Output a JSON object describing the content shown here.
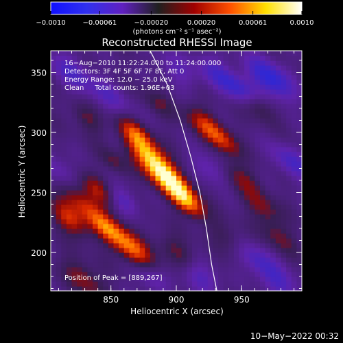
{
  "chart_data": {
    "type": "heatmap",
    "title": "Reconstructed RHESSI Image",
    "xlabel": "Heliocentric X (arcsec)",
    "ylabel": "Heliocentric Y (arcsec)",
    "xlim": [
      804,
      996
    ],
    "ylim": [
      168,
      368
    ],
    "x_ticks": [
      850,
      900,
      950
    ],
    "y_ticks": [
      200,
      250,
      300,
      350
    ],
    "colorbar": {
      "label": "(photons cm⁻² s⁻¹ asec⁻²)",
      "range": [
        -0.001,
        0.001
      ],
      "tick_labels": [
        "−0.0010",
        "−0.00061",
        "−0.00020",
        "0.00020",
        "0.00061",
        "0.0010"
      ],
      "tick_values": [
        -0.001,
        -0.00061,
        -0.0002,
        0.0002,
        0.00061,
        0.001
      ]
    },
    "annotations": [
      "16−Aug−2010 11:22:24.000 to 11:24:00.000",
      "Detectors: 3F 4F 5F 6F 7F 8F, Att 0",
      "Energy Range: 12.0 − 25.0 keV",
      "Clean     Total counts: 1.96E+03"
    ],
    "peak_label": "Position of Peak = [889,267]",
    "peak": [
      889,
      267
    ],
    "limb": [
      [
        880,
        368
      ],
      [
        893,
        340
      ],
      [
        903,
        310
      ],
      [
        911,
        280
      ],
      [
        918,
        250
      ],
      [
        923,
        220
      ],
      [
        927,
        190
      ],
      [
        931,
        168
      ]
    ],
    "blobs": [
      {
        "x": 889,
        "y": 267,
        "a": 0.00095,
        "s": 9
      },
      {
        "x": 877,
        "y": 284,
        "a": 0.0007,
        "s": 8
      },
      {
        "x": 868,
        "y": 300,
        "a": 0.0006,
        "s": 7
      },
      {
        "x": 902,
        "y": 252,
        "a": 0.0007,
        "s": 8
      },
      {
        "x": 910,
        "y": 240,
        "a": 0.00055,
        "s": 7
      },
      {
        "x": 830,
        "y": 240,
        "a": 0.00055,
        "s": 9
      },
      {
        "x": 818,
        "y": 228,
        "a": 0.0006,
        "s": 8
      },
      {
        "x": 840,
        "y": 252,
        "a": 0.00045,
        "s": 7
      },
      {
        "x": 857,
        "y": 212,
        "a": 0.00055,
        "s": 9
      },
      {
        "x": 870,
        "y": 200,
        "a": 0.0005,
        "s": 8
      },
      {
        "x": 845,
        "y": 222,
        "a": 0.0004,
        "s": 7
      },
      {
        "x": 922,
        "y": 307,
        "a": 0.00055,
        "s": 8
      },
      {
        "x": 936,
        "y": 293,
        "a": 0.0005,
        "s": 7
      },
      {
        "x": 950,
        "y": 262,
        "a": 0.00035,
        "s": 8
      },
      {
        "x": 966,
        "y": 238,
        "a": 0.00035,
        "s": 8
      },
      {
        "x": 978,
        "y": 213,
        "a": 0.0003,
        "s": 8
      },
      {
        "x": 962,
        "y": 322,
        "a": 0.0004,
        "s": 7
      },
      {
        "x": 940,
        "y": 212,
        "a": 0.00025,
        "s": 8
      },
      {
        "x": 830,
        "y": 178,
        "a": 0.0004,
        "s": 9
      },
      {
        "x": 902,
        "y": 200,
        "a": 0.00035,
        "s": 8
      },
      {
        "x": 832,
        "y": 312,
        "a": 0.0003,
        "s": 7
      },
      {
        "x": 852,
        "y": 276,
        "a": 0.0003,
        "s": 6
      },
      {
        "x": 886,
        "y": 325,
        "a": 0.00025,
        "s": 7
      },
      {
        "x": 972,
        "y": 345,
        "a": -0.0007,
        "s": 10
      },
      {
        "x": 950,
        "y": 335,
        "a": -0.0005,
        "s": 8
      },
      {
        "x": 930,
        "y": 350,
        "a": -0.0004,
        "s": 9
      },
      {
        "x": 820,
        "y": 350,
        "a": -0.0004,
        "s": 10
      },
      {
        "x": 850,
        "y": 330,
        "a": -0.0003,
        "s": 9
      },
      {
        "x": 988,
        "y": 275,
        "a": -0.00045,
        "s": 9
      },
      {
        "x": 960,
        "y": 195,
        "a": -0.0004,
        "s": 9
      },
      {
        "x": 980,
        "y": 175,
        "a": -0.0004,
        "s": 9
      },
      {
        "x": 860,
        "y": 243,
        "a": -0.0004,
        "s": 7
      },
      {
        "x": 925,
        "y": 270,
        "a": -0.00035,
        "s": 8
      },
      {
        "x": 918,
        "y": 180,
        "a": -0.0004,
        "s": 9
      },
      {
        "x": 880,
        "y": 178,
        "a": -0.0003,
        "s": 8
      },
      {
        "x": 810,
        "y": 270,
        "a": -0.0003,
        "s": 8
      },
      {
        "x": 900,
        "y": 352,
        "a": -0.0003,
        "s": 9
      }
    ]
  },
  "footer": {
    "date": "10−May−2022 00:32"
  },
  "colors": {
    "colorbar_stops": [
      "#1010ff",
      "#3030ee",
      "#6020c0",
      "#202020",
      "#a00000",
      "#ff5000",
      "#ffe000",
      "#ffffff"
    ],
    "limb": "#ffffff",
    "text": "#ffffff"
  }
}
